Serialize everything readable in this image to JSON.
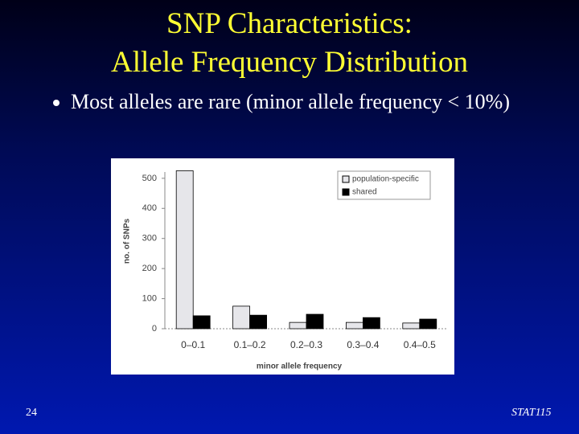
{
  "slide": {
    "title_lines": [
      "SNP Characteristics:",
      "Allele Frequency Distribution"
    ],
    "bullets": [
      "Most alleles are rare (minor allele frequency < 10%)"
    ],
    "page_number": "24",
    "footer": "STAT115"
  },
  "chart_data": {
    "type": "bar",
    "categories": [
      "0–0.1",
      "0.1–0.2",
      "0.2–0.3",
      "0.3–0.4",
      "0.4–0.5"
    ],
    "series": [
      {
        "name": "population-specific",
        "color": "#e6e6ea",
        "values": [
          525,
          75,
          21,
          21,
          19
        ]
      },
      {
        "name": "shared",
        "color": "#000000",
        "values": [
          43,
          45,
          48,
          37,
          32
        ]
      }
    ],
    "x_label": "minor  allele  frequency",
    "y_label": "no. of SNPs",
    "ylim": [
      0,
      545
    ],
    "yticks": [
      0,
      100,
      200,
      300,
      400,
      500
    ],
    "legend": "upper right",
    "grid": false
  }
}
